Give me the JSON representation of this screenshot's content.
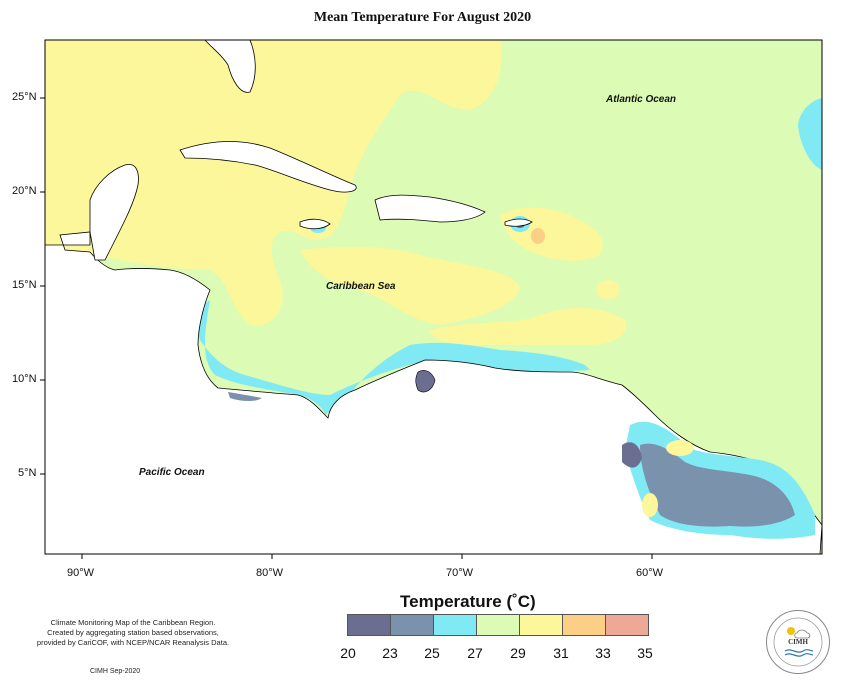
{
  "title": "Mean Temperature For August 2020",
  "map_labels": {
    "atlantic": "Atlantic Ocean",
    "caribbean": "Caribbean Sea",
    "pacific": "Pacific Ocean"
  },
  "lat_labels": [
    "25°N",
    "20°N",
    "15°N",
    "10°N",
    "5°N"
  ],
  "lon_labels": [
    "90°W",
    "80°W",
    "70°W",
    "60°W"
  ],
  "legend": {
    "title": "Temperature (˚C)",
    "ticks": [
      "20",
      "23",
      "25",
      "27",
      "29",
      "31",
      "33",
      "35"
    ],
    "colors": [
      "#6b6e91",
      "#7b92ad",
      "#7fe9f4",
      "#dcfbb4",
      "#fbf79a",
      "#fbcf86",
      "#eda896"
    ]
  },
  "credits": {
    "line1": "Climate Monitoring Map of the Caribbean Region.",
    "line2": "Created by aggregating station based observations,",
    "line3": "provided by CariCOF, with NCEP/NCAR Reanalysis Data.",
    "date": "CIMH Sep-2020"
  },
  "logo_text": "CIMH",
  "colors": {
    "sea_base": "#dcfbb4",
    "warm": "#fbf79a",
    "cool": "#7fe9f4",
    "cooler": "#7b92ad",
    "coolest": "#6b6e91",
    "hot": "#fbcf86",
    "land": "#ffffff"
  }
}
